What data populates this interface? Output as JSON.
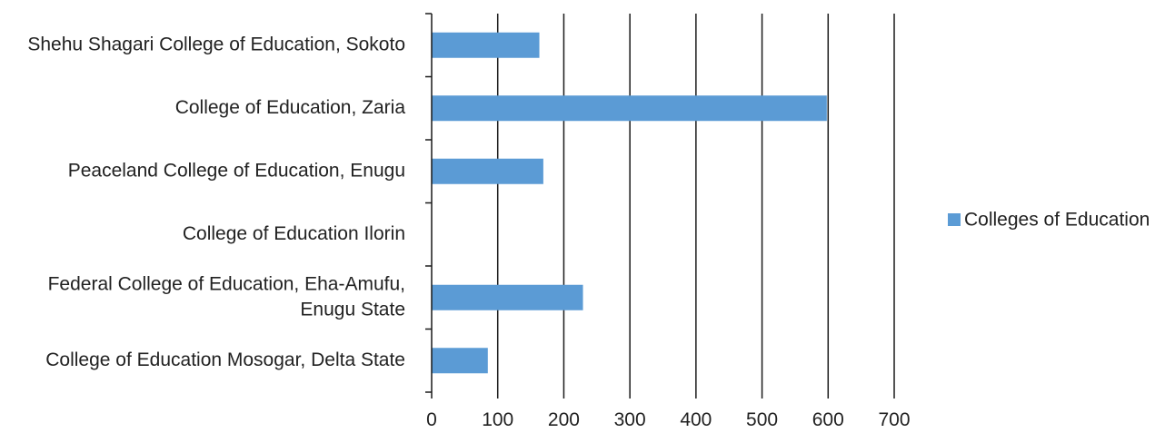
{
  "chart_data": {
    "type": "bar",
    "orientation": "horizontal",
    "categories": [
      "Shehu Shagari College of Education, Sokoto",
      "College of Education, Zaria",
      "Peaceland College of Education, Enugu",
      "College of Education Ilorin",
      "Federal College of Education, Eha-Amufu, Enugu State",
      "College of Education Mosogar, Delta State"
    ],
    "category_label_lines": [
      [
        "Shehu Shagari College of Education, Sokoto"
      ],
      [
        "College of Education, Zaria"
      ],
      [
        "Peaceland College of Education, Enugu"
      ],
      [
        "College of Education Ilorin"
      ],
      [
        "Federal College of Education, Eha-Amufu,",
        "Enugu State"
      ],
      [
        "College of Education Mosogar, Delta State"
      ]
    ],
    "series": [
      {
        "name": "Colleges of Education",
        "values": [
          163,
          598,
          169,
          0,
          229,
          85
        ],
        "color": "#5b9bd5"
      }
    ],
    "xlim": [
      0,
      700
    ],
    "xticks": [
      0,
      100,
      200,
      300,
      400,
      500,
      600,
      700
    ],
    "title": "",
    "xlabel": "",
    "ylabel": "",
    "grid": "vertical",
    "legend_position": "right"
  }
}
